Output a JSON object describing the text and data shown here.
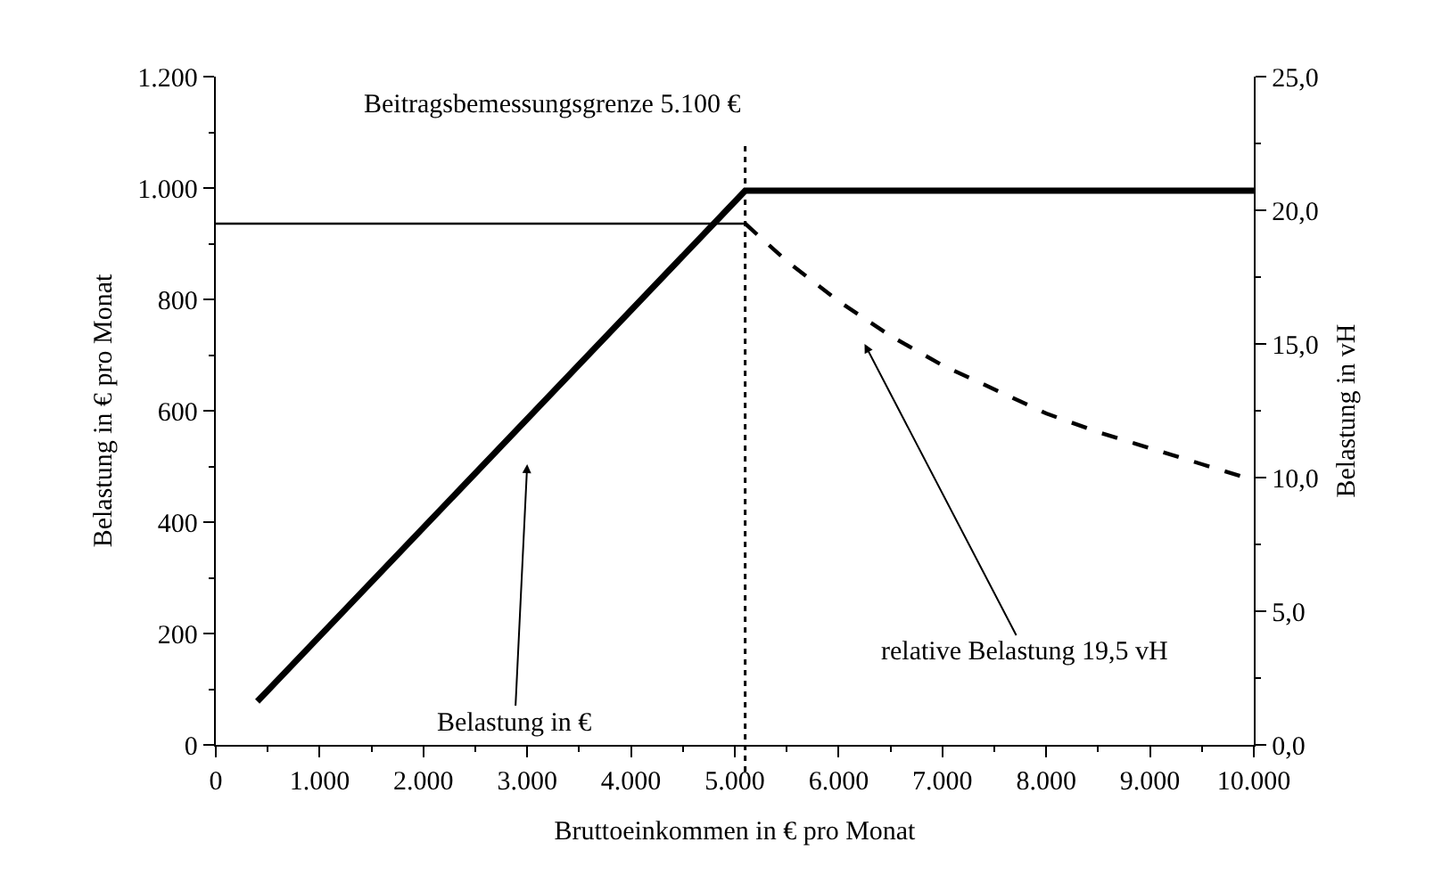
{
  "chart_data": {
    "type": "line",
    "xlabel": "Bruttoeinkommen in € pro Monat",
    "ylabel": "Belastung in € pro Monat",
    "y2label": "Belastung in vH",
    "series": [
      {
        "color": "#000000",
        "x": [
          400,
          5100,
          10000
        ],
        "values": [
          78,
          995,
          995
        ],
        "line_style": "solid"
      },
      {
        "color": "#000000",
        "axis": "y2",
        "x": [
          0,
          5100
        ],
        "values": [
          19.5,
          19.5
        ],
        "line_style": "solid"
      },
      {
        "color": "#000000",
        "axis": "y2",
        "x": [
          5100,
          5500,
          6000,
          6500,
          7000,
          7500,
          8000,
          8500,
          9000,
          9500,
          10000
        ],
        "values": [
          19.5,
          18.1,
          16.6,
          15.3,
          14.2,
          13.3,
          12.4,
          11.7,
          11.1,
          10.5,
          9.9
        ],
        "line_style": "dashed"
      }
    ],
    "xlim": [
      0,
      10000
    ],
    "xticks": [
      0,
      {
        "value": 1000,
        "label": "1.000"
      },
      {
        "value": 2000,
        "label": "2.000"
      },
      {
        "value": 3000,
        "label": "3.000"
      },
      {
        "value": 4000,
        "label": "4.000"
      },
      {
        "value": 5000,
        "label": "5.000"
      },
      {
        "value": 6000,
        "label": "6.000"
      },
      {
        "value": 7000,
        "label": "7.000"
      },
      {
        "value": 8000,
        "label": "8.000"
      },
      {
        "value": 9000,
        "label": "9.000"
      },
      {
        "value": 10000,
        "label": "10.000"
      }
    ],
    "ylim": [
      0,
      1200
    ],
    "yticks": [
      0,
      200,
      400,
      600,
      800,
      {
        "value": 1000,
        "label": "1.000"
      },
      {
        "value": 1200,
        "label": "1.200"
      }
    ],
    "y2lim": [
      0,
      25
    ],
    "y2ticks": [
      {
        "value": 0,
        "label": "0,0"
      },
      {
        "value": 5,
        "label": "5,0"
      },
      {
        "value": 10,
        "label": "10,0"
      },
      {
        "value": 15,
        "label": "15,0"
      },
      {
        "value": 20,
        "label": "20,0"
      },
      {
        "value": 25,
        "label": "25,0"
      }
    ],
    "ref_lines": [
      {
        "axis": "x",
        "value": 5100,
        "label": "Beitragsbemessungsgrenze 5.100 €",
        "line_style": "dotted",
        "color": "#000000"
      }
    ],
    "annotations": [
      "Belastung in €",
      "relative Belastung 19,5 vH"
    ],
    "marker": "none"
  }
}
